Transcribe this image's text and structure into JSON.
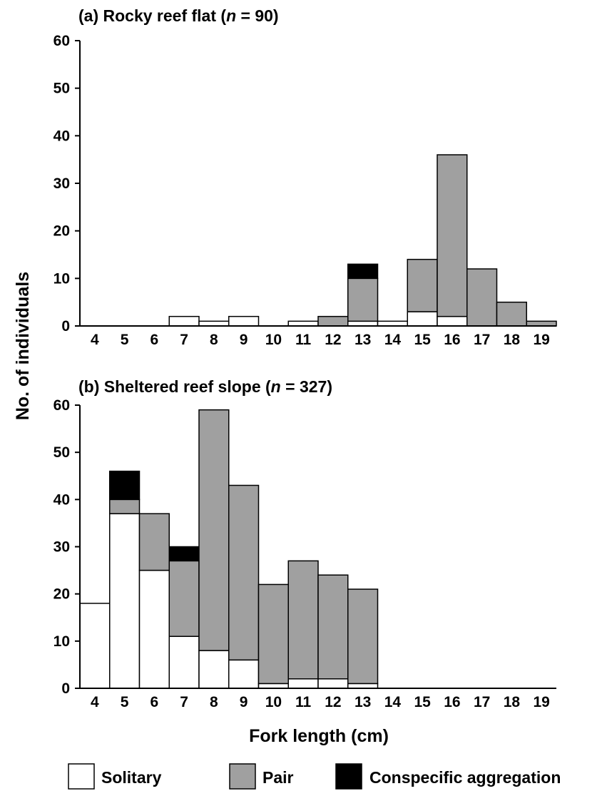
{
  "chart_data": [
    {
      "type": "bar",
      "stacked": true,
      "panel_id": "a",
      "title_prefix": "(a) Rocky reef flat (",
      "title_n_symbol": "n",
      "title_n_value": " = 90)",
      "ylabel": "No. of individuals",
      "ylim": [
        0,
        60
      ],
      "yticks": [
        "0",
        "10",
        "20",
        "30",
        "40",
        "50",
        "60"
      ],
      "categories": [
        "4",
        "5",
        "6",
        "7",
        "8",
        "9",
        "10",
        "11",
        "12",
        "13",
        "14",
        "15",
        "16",
        "17",
        "18",
        "19"
      ],
      "series": [
        {
          "name": "Solitary",
          "color": "#ffffff",
          "values": [
            0,
            0,
            0,
            2,
            1,
            2,
            0,
            1,
            0,
            1,
            1,
            3,
            2,
            0,
            0,
            0
          ]
        },
        {
          "name": "Pair",
          "color": "#a0a0a0",
          "values": [
            0,
            0,
            0,
            0,
            0,
            0,
            0,
            0,
            2,
            9,
            0,
            11,
            34,
            12,
            5,
            1
          ]
        },
        {
          "name": "Conspecific aggregation",
          "color": "#000000",
          "values": [
            0,
            0,
            0,
            0,
            0,
            0,
            0,
            0,
            0,
            3,
            0,
            0,
            0,
            0,
            0,
            0
          ]
        }
      ]
    },
    {
      "type": "bar",
      "stacked": true,
      "panel_id": "b",
      "title_prefix": "(b) Sheltered reef slope (",
      "title_n_symbol": "n",
      "title_n_value": " = 327)",
      "xlabel": "Fork length (cm)",
      "ylim": [
        0,
        60
      ],
      "yticks": [
        "0",
        "10",
        "20",
        "30",
        "40",
        "50",
        "60"
      ],
      "categories": [
        "4",
        "5",
        "6",
        "7",
        "8",
        "9",
        "10",
        "11",
        "12",
        "13",
        "14",
        "15",
        "16",
        "17",
        "18",
        "19"
      ],
      "series": [
        {
          "name": "Solitary",
          "color": "#ffffff",
          "values": [
            18,
            37,
            25,
            11,
            8,
            6,
            1,
            2,
            2,
            1,
            0,
            0,
            0,
            0,
            0,
            0
          ]
        },
        {
          "name": "Pair",
          "color": "#a0a0a0",
          "values": [
            0,
            3,
            12,
            16,
            51,
            37,
            21,
            25,
            22,
            20,
            0,
            0,
            0,
            0,
            0,
            0
          ]
        },
        {
          "name": "Conspecific aggregation",
          "color": "#000000",
          "values": [
            0,
            6,
            0,
            3,
            0,
            0,
            0,
            0,
            0,
            0,
            0,
            0,
            0,
            0,
            0,
            0
          ]
        }
      ]
    }
  ],
  "legend": {
    "placement": "bottom",
    "items": [
      {
        "label": "Solitary",
        "color": "#ffffff"
      },
      {
        "label": "Pair",
        "color": "#a0a0a0"
      },
      {
        "label": "Conspecific aggregation",
        "color": "#000000"
      }
    ]
  }
}
